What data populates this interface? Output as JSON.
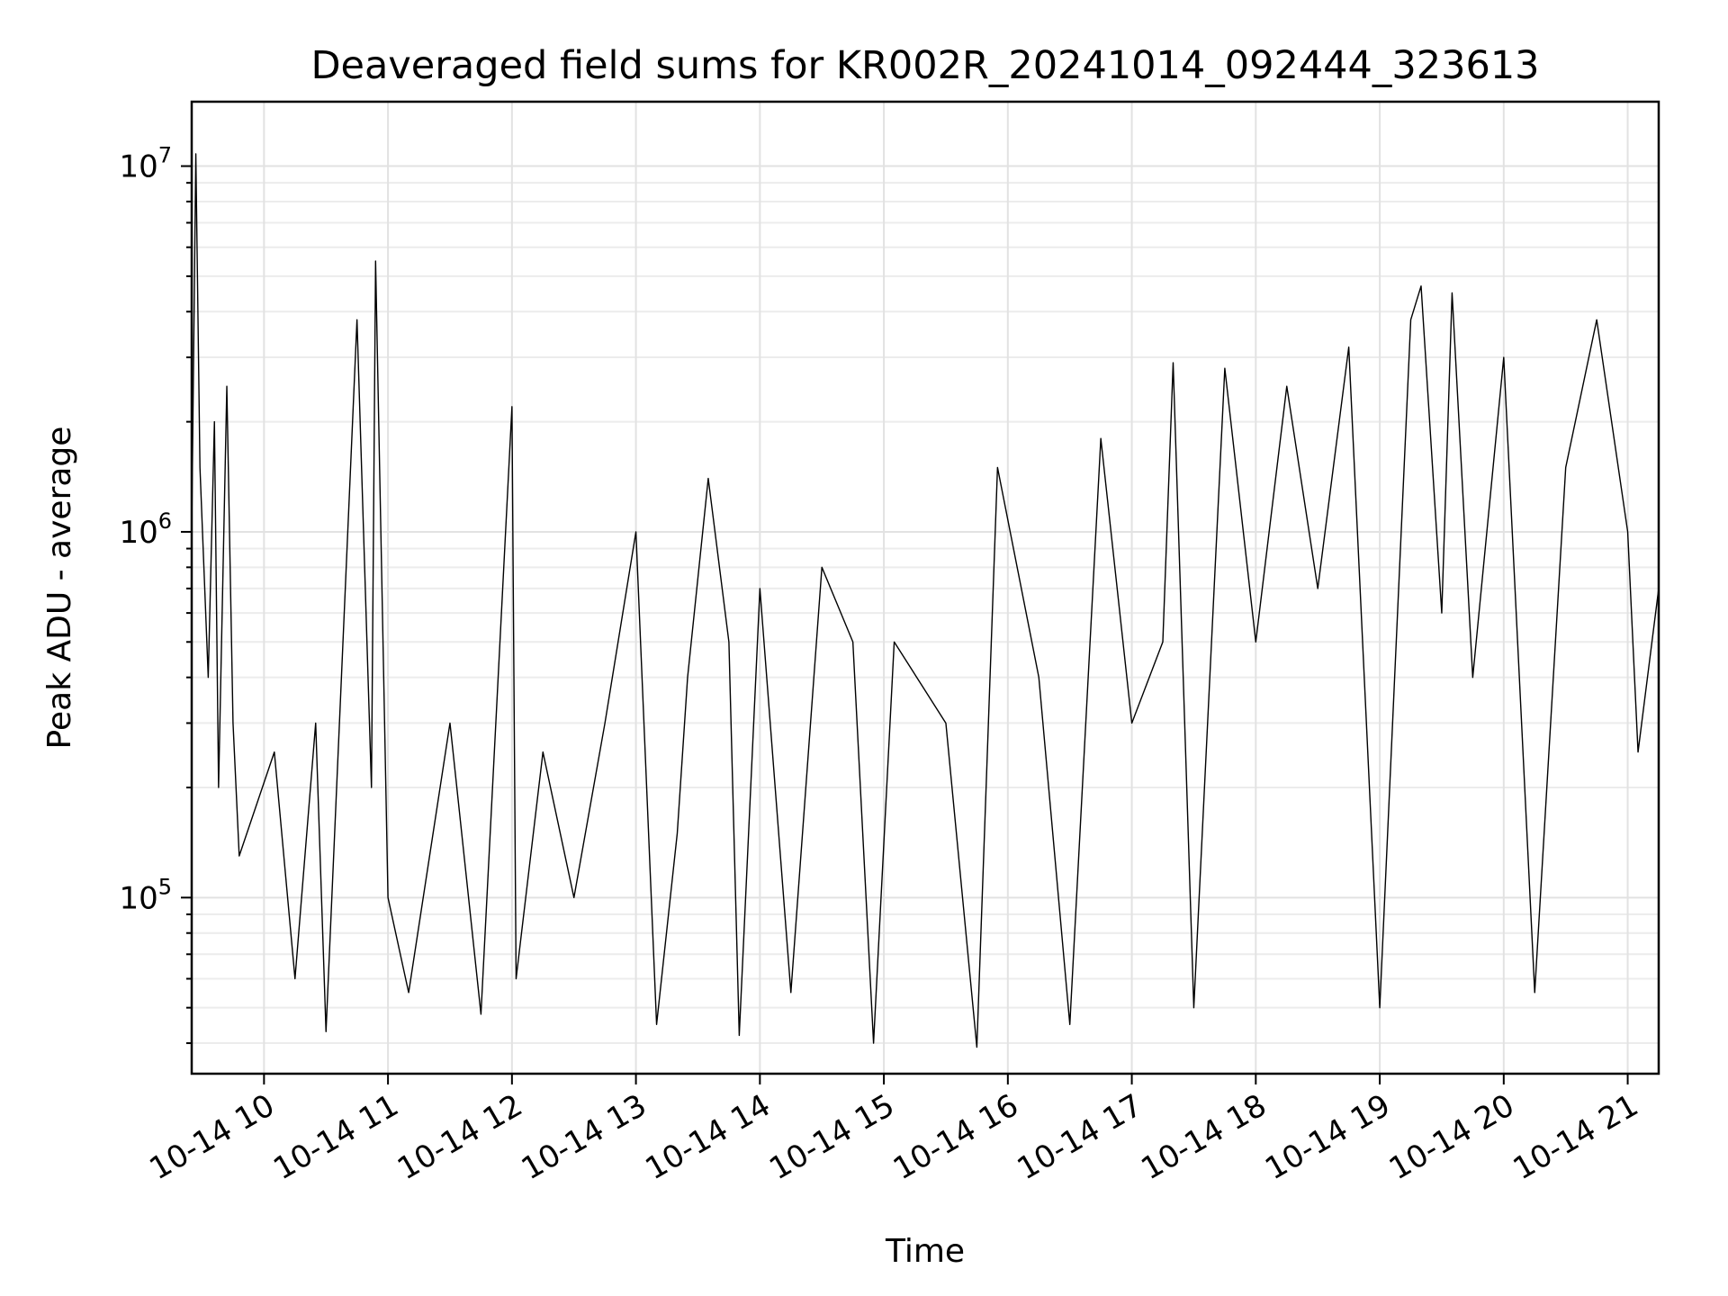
{
  "chart_data": {
    "type": "line",
    "title": "Deaveraged field sums for KR002R_20241014_092444_323613",
    "xlabel": "Time",
    "ylabel": "Peak ADU - average",
    "x_range": [
      "2024-10-14 09:25",
      "2024-10-14 21:15"
    ],
    "ylim": [
      33000,
      15000000
    ],
    "y_scale": "log",
    "grid": true,
    "x_ticks": [
      {
        "value": "2024-10-14 10:00",
        "label": "10-14 10"
      },
      {
        "value": "2024-10-14 11:00",
        "label": "10-14 11"
      },
      {
        "value": "2024-10-14 12:00",
        "label": "10-14 12"
      },
      {
        "value": "2024-10-14 13:00",
        "label": "10-14 13"
      },
      {
        "value": "2024-10-14 14:00",
        "label": "10-14 14"
      },
      {
        "value": "2024-10-14 15:00",
        "label": "10-14 15"
      },
      {
        "value": "2024-10-14 16:00",
        "label": "10-14 16"
      },
      {
        "value": "2024-10-14 17:00",
        "label": "10-14 17"
      },
      {
        "value": "2024-10-14 18:00",
        "label": "10-14 18"
      },
      {
        "value": "2024-10-14 19:00",
        "label": "10-14 19"
      },
      {
        "value": "2024-10-14 20:00",
        "label": "10-14 20"
      },
      {
        "value": "2024-10-14 21:00",
        "label": "10-14 21"
      }
    ],
    "y_ticks": [
      {
        "value": 100000,
        "base": "10",
        "exp": "5"
      },
      {
        "value": 1000000,
        "base": "10",
        "exp": "6"
      },
      {
        "value": 10000000,
        "base": "10",
        "exp": "7"
      }
    ],
    "series": [
      {
        "color": "#000000",
        "points": [
          [
            "2024-10-14 09:25",
            1000000
          ],
          [
            "2024-10-14 09:27",
            10800000
          ],
          [
            "2024-10-14 09:29",
            1500000
          ],
          [
            "2024-10-14 09:33",
            400000
          ],
          [
            "2024-10-14 09:36",
            2000000
          ],
          [
            "2024-10-14 09:38",
            200000
          ],
          [
            "2024-10-14 09:42",
            2500000
          ],
          [
            "2024-10-14 09:45",
            300000
          ],
          [
            "2024-10-14 09:48",
            130000
          ],
          [
            "2024-10-14 10:05",
            250000
          ],
          [
            "2024-10-14 10:15",
            60000
          ],
          [
            "2024-10-14 10:25",
            300000
          ],
          [
            "2024-10-14 10:30",
            43000
          ],
          [
            "2024-10-14 10:45",
            3800000
          ],
          [
            "2024-10-14 10:52",
            200000
          ],
          [
            "2024-10-14 10:54",
            5500000
          ],
          [
            "2024-10-14 11:00",
            100000
          ],
          [
            "2024-10-14 11:10",
            55000
          ],
          [
            "2024-10-14 11:30",
            300000
          ],
          [
            "2024-10-14 11:45",
            48000
          ],
          [
            "2024-10-14 12:00",
            2200000
          ],
          [
            "2024-10-14 12:02",
            60000
          ],
          [
            "2024-10-14 12:15",
            250000
          ],
          [
            "2024-10-14 12:30",
            100000
          ],
          [
            "2024-10-14 12:45",
            300000
          ],
          [
            "2024-10-14 13:00",
            1000000
          ],
          [
            "2024-10-14 13:10",
            45000
          ],
          [
            "2024-10-14 13:20",
            150000
          ],
          [
            "2024-10-14 13:25",
            400000
          ],
          [
            "2024-10-14 13:35",
            1400000
          ],
          [
            "2024-10-14 13:45",
            500000
          ],
          [
            "2024-10-14 13:50",
            42000
          ],
          [
            "2024-10-14 14:00",
            700000
          ],
          [
            "2024-10-14 14:15",
            55000
          ],
          [
            "2024-10-14 14:30",
            800000
          ],
          [
            "2024-10-14 14:45",
            500000
          ],
          [
            "2024-10-14 14:55",
            40000
          ],
          [
            "2024-10-14 15:05",
            500000
          ],
          [
            "2024-10-14 15:30",
            300000
          ],
          [
            "2024-10-14 15:45",
            39000
          ],
          [
            "2024-10-14 15:55",
            1500000
          ],
          [
            "2024-10-14 16:15",
            400000
          ],
          [
            "2024-10-14 16:30",
            45000
          ],
          [
            "2024-10-14 16:45",
            1800000
          ],
          [
            "2024-10-14 17:00",
            300000
          ],
          [
            "2024-10-14 17:15",
            500000
          ],
          [
            "2024-10-14 17:20",
            2900000
          ],
          [
            "2024-10-14 17:30",
            50000
          ],
          [
            "2024-10-14 17:45",
            2800000
          ],
          [
            "2024-10-14 18:00",
            500000
          ],
          [
            "2024-10-14 18:15",
            2500000
          ],
          [
            "2024-10-14 18:30",
            700000
          ],
          [
            "2024-10-14 18:45",
            3200000
          ],
          [
            "2024-10-14 19:00",
            50000
          ],
          [
            "2024-10-14 19:15",
            3800000
          ],
          [
            "2024-10-14 19:20",
            4700000
          ],
          [
            "2024-10-14 19:30",
            600000
          ],
          [
            "2024-10-14 19:35",
            4500000
          ],
          [
            "2024-10-14 19:45",
            400000
          ],
          [
            "2024-10-14 20:00",
            3000000
          ],
          [
            "2024-10-14 20:15",
            55000
          ],
          [
            "2024-10-14 20:30",
            1500000
          ],
          [
            "2024-10-14 20:45",
            3800000
          ],
          [
            "2024-10-14 21:00",
            1000000
          ],
          [
            "2024-10-14 21:05",
            250000
          ],
          [
            "2024-10-14 21:15",
            700000
          ]
        ]
      }
    ]
  }
}
